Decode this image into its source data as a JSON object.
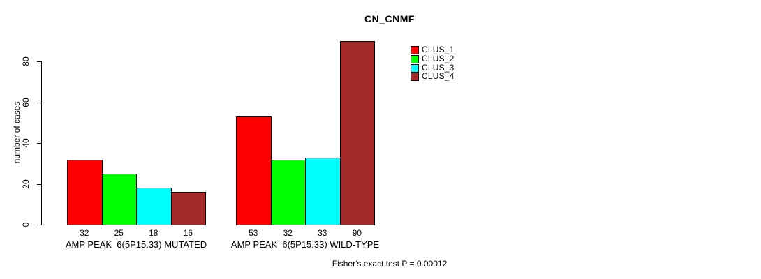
{
  "chart_data": {
    "type": "bar",
    "title": "CN_CNMF",
    "ylabel": "number of cases",
    "xlabel": "",
    "ylim": [
      0,
      80
    ],
    "yticks": [
      0,
      20,
      40,
      60,
      80
    ],
    "grid": false,
    "legend_position": "top-right",
    "categories": [
      "AMP PEAK  6(5P15.33) MUTATED",
      "AMP PEAK  6(5P15.33) WILD-TYPE"
    ],
    "series": [
      {
        "name": "CLUS_1",
        "color": "#ff0000",
        "values": [
          32,
          53
        ]
      },
      {
        "name": "CLUS_2",
        "color": "#00ff00",
        "values": [
          25,
          32
        ]
      },
      {
        "name": "CLUS_3",
        "color": "#00ffff",
        "values": [
          18,
          33
        ]
      },
      {
        "name": "CLUS_4",
        "color": "#a52a2a",
        "values": [
          16,
          90
        ]
      }
    ],
    "bar_value_labels": [
      [
        "32",
        "25",
        "18",
        "16"
      ],
      [
        "53",
        "32",
        "33",
        "90"
      ]
    ],
    "footnote": "Fisher's exact test P = 0.00012"
  }
}
